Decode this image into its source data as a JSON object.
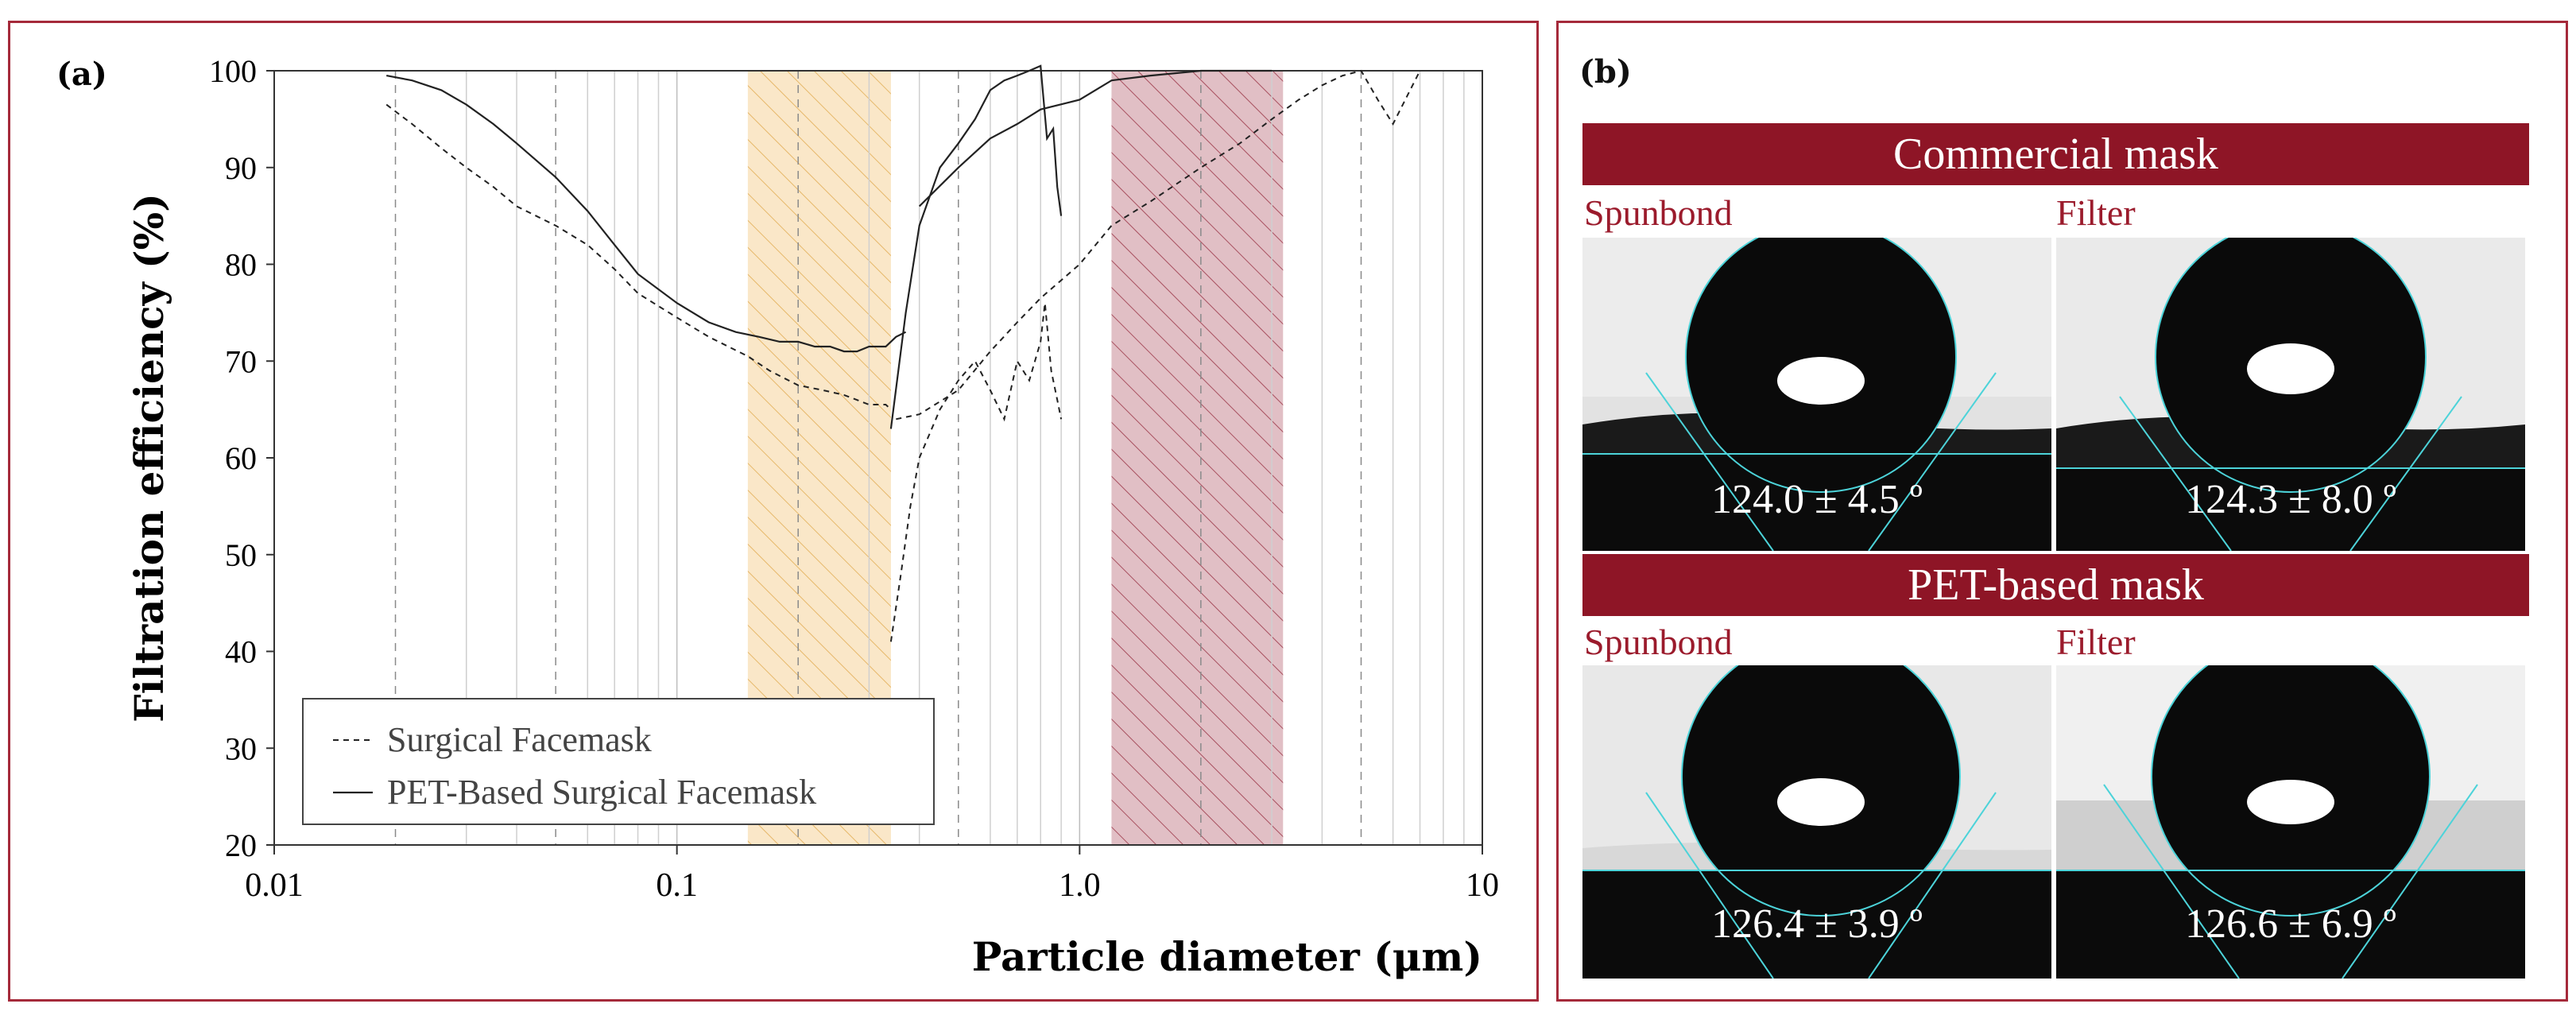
{
  "panel_a": {
    "label": "(a)",
    "chart_data": {
      "type": "line",
      "xscale": "log",
      "xlim": [
        0.01,
        10
      ],
      "ylim": [
        20,
        100
      ],
      "xlabel": "Particle diameter (μm)",
      "ylabel": "Filtration efficiency (%)",
      "xticks": [
        {
          "v": 0.01,
          "label": "0.01"
        },
        {
          "v": 0.1,
          "label": "0.1"
        },
        {
          "v": 1,
          "label": "1.0"
        },
        {
          "v": 10,
          "label": "10"
        }
      ],
      "yticks": [
        20,
        30,
        40,
        50,
        60,
        70,
        80,
        90,
        100
      ],
      "shaded_regions": [
        {
          "x0": 0.15,
          "x1": 0.34,
          "color": "#f6d49a"
        },
        {
          "x0": 1.2,
          "x1": 3.2,
          "color": "#c98a95"
        }
      ],
      "legend": [
        "Surgical Facemask",
        "PET-Based Surgical Facemask"
      ],
      "series": [
        {
          "name": "Surgical Facemask",
          "dash": true,
          "x": [
            0.019,
            0.022,
            0.026,
            0.03,
            0.035,
            0.04,
            0.05,
            0.06,
            0.07,
            0.08,
            0.1,
            0.12,
            0.15,
            0.17,
            0.2,
            0.23,
            0.26,
            0.3,
            0.33,
            0.34
          ],
          "y": [
            96.5,
            94.5,
            92,
            90,
            88,
            86,
            84,
            82,
            79.5,
            77,
            74.5,
            72.5,
            70.5,
            69,
            67.5,
            67,
            66.5,
            65.5,
            65.5,
            65
          ]
        },
        {
          "name": "Surgical Facemask",
          "dash": true,
          "x": [
            0.34,
            0.36,
            0.38,
            0.4,
            0.45,
            0.5,
            0.55,
            0.6,
            0.65,
            0.7,
            0.75,
            0.8,
            0.82,
            0.85,
            0.88,
            0.9
          ],
          "y": [
            41,
            48,
            55,
            60,
            65,
            68,
            70,
            67,
            64,
            70,
            68,
            72,
            76,
            69,
            66,
            64
          ]
        },
        {
          "name": "Surgical Facemask",
          "dash": true,
          "x": [
            0.35,
            0.4,
            0.5,
            0.6,
            0.7,
            0.8,
            1.0,
            1.2,
            1.5,
            2,
            2.5,
            3,
            3.5,
            4,
            4.5,
            5,
            5.5,
            6,
            7
          ],
          "y": [
            64,
            64.5,
            67,
            71,
            74,
            76.5,
            80,
            84,
            86.5,
            90,
            92.5,
            95,
            97,
            98.5,
            99.5,
            100,
            97,
            94.5,
            100
          ]
        },
        {
          "name": "PET-Based Surgical Facemask",
          "dash": false,
          "x": [
            0.019,
            0.022,
            0.026,
            0.03,
            0.035,
            0.04,
            0.05,
            0.06,
            0.07,
            0.08,
            0.1,
            0.12,
            0.14,
            0.16,
            0.18,
            0.2,
            0.22,
            0.24,
            0.26,
            0.28,
            0.3,
            0.33,
            0.35,
            0.37
          ],
          "y": [
            99.5,
            99,
            98,
            96.5,
            94.5,
            92.5,
            89,
            85.5,
            82,
            79,
            76,
            74,
            73,
            72.5,
            72,
            72,
            71.5,
            71.5,
            71,
            71,
            71.5,
            71.5,
            72.5,
            73
          ]
        },
        {
          "name": "PET-Based Surgical Facemask",
          "dash": false,
          "x": [
            0.34,
            0.37,
            0.4,
            0.45,
            0.5,
            0.55,
            0.6,
            0.65,
            0.7,
            0.75,
            0.8,
            0.83,
            0.86,
            0.88,
            0.9
          ],
          "y": [
            63,
            75,
            84,
            90,
            92.5,
            95,
            98,
            99,
            99.5,
            100,
            100.5,
            93,
            94,
            88,
            85
          ]
        },
        {
          "name": "PET-Based Surgical Facemask",
          "dash": false,
          "x": [
            0.4,
            0.5,
            0.6,
            0.7,
            0.8,
            1.0,
            1.2,
            1.5,
            2,
            3
          ],
          "y": [
            86,
            90,
            93,
            94.5,
            96,
            97,
            99,
            99.5,
            100,
            100
          ]
        }
      ]
    }
  },
  "panel_b": {
    "label": "(b)",
    "commercial_title": "Commercial mask",
    "pet_title": "PET-based mask",
    "spunbond_label": "Spunbond",
    "filter_label": "Filter",
    "angles": {
      "commercial_spunbond": "124.0 ± 4.5 º",
      "commercial_filter": "124.3 ± 8.0 º",
      "pet_spunbond": "126.4 ± 3.9 º",
      "pet_filter": "126.6 ± 6.9 º"
    }
  }
}
